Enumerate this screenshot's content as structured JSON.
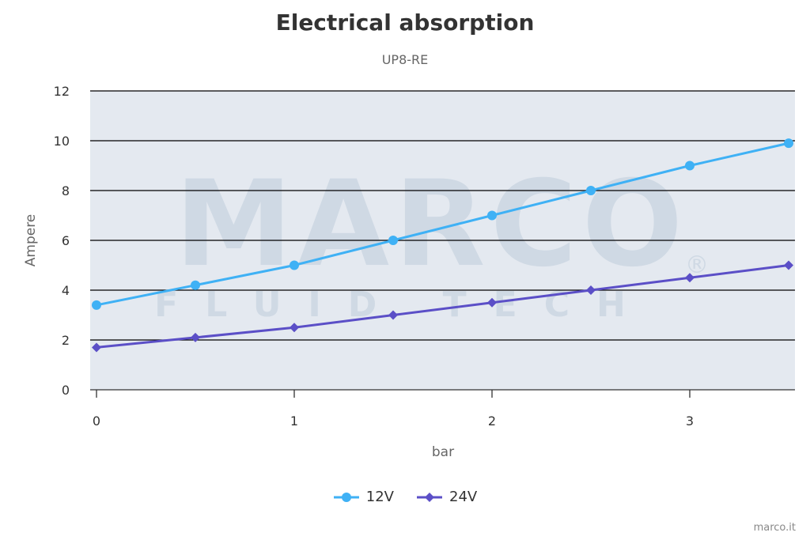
{
  "chart_data": {
    "type": "line",
    "title": "Electrical absorption",
    "subtitle": "UP8-RE",
    "xlabel": "bar",
    "ylabel": "Ampere",
    "xlim": [
      0,
      3.5
    ],
    "ylim": [
      0,
      12
    ],
    "x_ticks": [
      "0",
      "1",
      "2",
      "3"
    ],
    "y_ticks": [
      "0",
      "2",
      "4",
      "6",
      "8",
      "10",
      "12"
    ],
    "x": [
      0,
      0.5,
      1,
      1.5,
      2,
      2.5,
      3,
      3.5
    ],
    "series": [
      {
        "name": "12V",
        "color": "#3fb1f5",
        "marker": "circle",
        "values": [
          3.4,
          4.2,
          5,
          6,
          7,
          8,
          9,
          9.9
        ]
      },
      {
        "name": "24V",
        "color": "#5b4fc7",
        "marker": "diamond",
        "values": [
          1.7,
          2.1,
          2.5,
          3,
          3.5,
          4,
          4.5,
          5
        ]
      }
    ],
    "grid": true,
    "legend_position": "bottom"
  },
  "watermark": {
    "brand": "MARCO",
    "tagline": "FLUID TECH"
  },
  "credit": "marco.it",
  "colors": {
    "plot_background": "#e4e9f0",
    "grid": "#000000"
  }
}
